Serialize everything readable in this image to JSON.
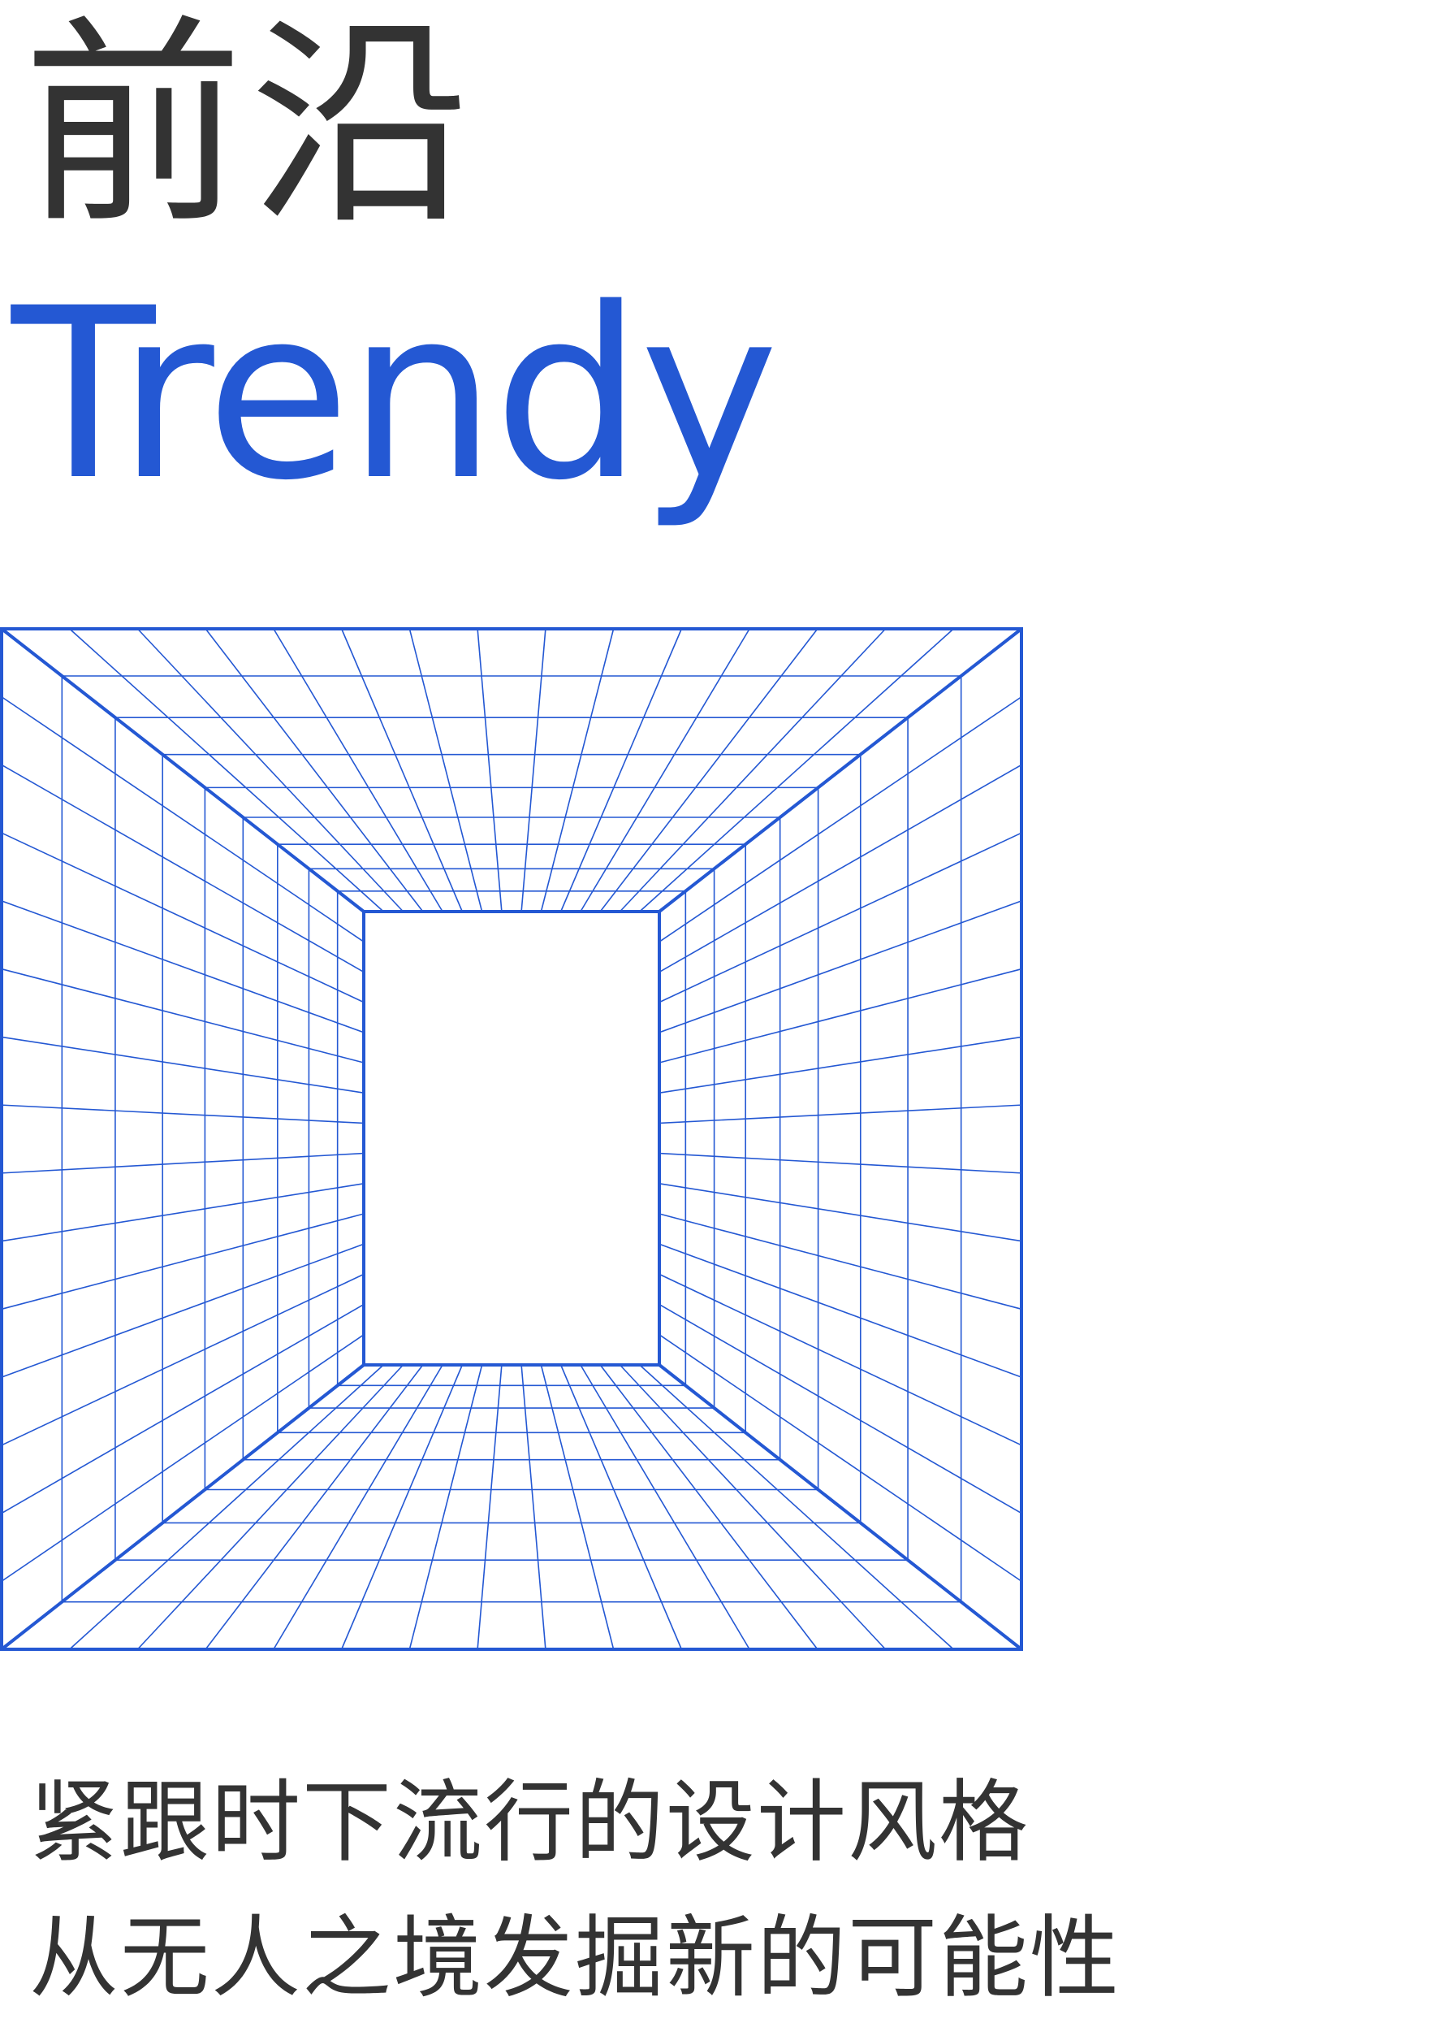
{
  "heading": {
    "chinese": "前沿",
    "english": "Trendy"
  },
  "graphic": {
    "icon": "perspective-grid-tunnel-icon",
    "color": "#2458d3"
  },
  "slogan": {
    "line1": "紧跟时下流行的设计风格",
    "line2": "从无人之境发掘新的可能性"
  },
  "colors": {
    "accent": "#2458d3",
    "text": "#333333",
    "background": "#ffffff"
  }
}
